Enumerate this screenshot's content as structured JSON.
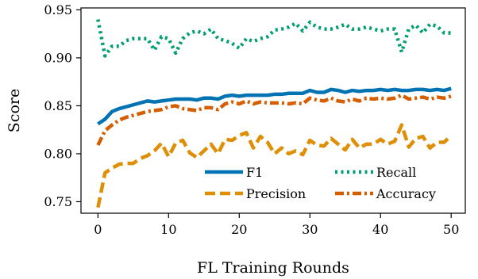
{
  "chart_data": {
    "type": "line",
    "xlabel": "FL Training Rounds",
    "ylabel": "Score",
    "xlim": [
      -2.4,
      52
    ],
    "ylim": [
      0.738,
      0.952
    ],
    "xticks": [
      0,
      10,
      20,
      30,
      40,
      50
    ],
    "yticks": [
      0.75,
      0.8,
      0.85,
      0.9,
      0.95
    ],
    "grid": false,
    "legend_position": "lower-right",
    "x": [
      0,
      1,
      2,
      3,
      4,
      5,
      6,
      7,
      8,
      9,
      10,
      11,
      12,
      13,
      14,
      15,
      16,
      17,
      18,
      19,
      20,
      21,
      22,
      23,
      24,
      25,
      26,
      27,
      28,
      29,
      30,
      31,
      32,
      33,
      34,
      35,
      36,
      37,
      38,
      39,
      40,
      41,
      42,
      43,
      44,
      45,
      46,
      47,
      48,
      49,
      50
    ],
    "series": [
      {
        "name": "F1",
        "color": "#0173b2",
        "dash": "solid",
        "values": [
          0.831,
          0.836,
          0.844,
          0.847,
          0.849,
          0.851,
          0.853,
          0.855,
          0.854,
          0.855,
          0.856,
          0.857,
          0.857,
          0.857,
          0.856,
          0.858,
          0.858,
          0.857,
          0.86,
          0.861,
          0.86,
          0.861,
          0.861,
          0.861,
          0.861,
          0.862,
          0.862,
          0.863,
          0.863,
          0.863,
          0.866,
          0.864,
          0.864,
          0.867,
          0.866,
          0.864,
          0.866,
          0.865,
          0.866,
          0.866,
          0.867,
          0.866,
          0.867,
          0.866,
          0.866,
          0.867,
          0.867,
          0.866,
          0.867,
          0.866,
          0.868
        ]
      },
      {
        "name": "Precision",
        "color": "#de8f05",
        "dash": "dashed",
        "values": [
          0.744,
          0.78,
          0.785,
          0.789,
          0.79,
          0.79,
          0.795,
          0.798,
          0.803,
          0.811,
          0.797,
          0.811,
          0.814,
          0.801,
          0.796,
          0.803,
          0.81,
          0.8,
          0.815,
          0.814,
          0.819,
          0.822,
          0.806,
          0.818,
          0.812,
          0.8,
          0.806,
          0.8,
          0.803,
          0.799,
          0.814,
          0.809,
          0.808,
          0.816,
          0.81,
          0.804,
          0.815,
          0.806,
          0.81,
          0.81,
          0.815,
          0.81,
          0.813,
          0.83,
          0.807,
          0.816,
          0.818,
          0.806,
          0.812,
          0.812,
          0.819
        ]
      },
      {
        "name": "Recall",
        "color": "#029e73",
        "dash": "dotted",
        "values": [
          0.94,
          0.902,
          0.912,
          0.912,
          0.918,
          0.92,
          0.92,
          0.92,
          0.908,
          0.922,
          0.92,
          0.905,
          0.92,
          0.926,
          0.928,
          0.925,
          0.93,
          0.92,
          0.918,
          0.915,
          0.91,
          0.92,
          0.917,
          0.92,
          0.922,
          0.929,
          0.93,
          0.932,
          0.936,
          0.928,
          0.937,
          0.932,
          0.93,
          0.93,
          0.932,
          0.935,
          0.93,
          0.93,
          0.932,
          0.93,
          0.928,
          0.93,
          0.93,
          0.906,
          0.93,
          0.934,
          0.926,
          0.935,
          0.933,
          0.926,
          0.926
        ]
      },
      {
        "name": "Accuracy",
        "color": "#d55e00",
        "dash": "dashdot",
        "values": [
          0.809,
          0.824,
          0.83,
          0.835,
          0.838,
          0.84,
          0.842,
          0.844,
          0.845,
          0.846,
          0.849,
          0.85,
          0.847,
          0.846,
          0.845,
          0.848,
          0.848,
          0.846,
          0.852,
          0.854,
          0.852,
          0.855,
          0.852,
          0.854,
          0.853,
          0.853,
          0.853,
          0.852,
          0.853,
          0.852,
          0.858,
          0.856,
          0.855,
          0.858,
          0.855,
          0.854,
          0.857,
          0.855,
          0.858,
          0.857,
          0.858,
          0.857,
          0.858,
          0.861,
          0.857,
          0.858,
          0.859,
          0.857,
          0.859,
          0.858,
          0.86
        ]
      }
    ],
    "legend_order": [
      "F1",
      "Recall",
      "Precision",
      "Accuracy"
    ]
  }
}
